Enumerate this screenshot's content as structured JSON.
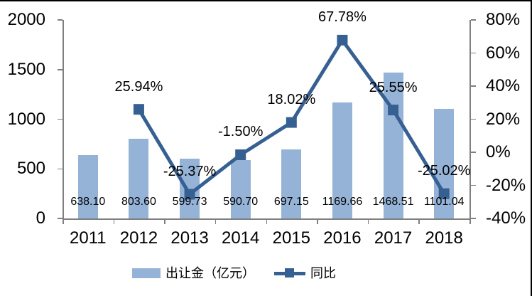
{
  "chart_data": {
    "type": "combo",
    "title": "",
    "categories": [
      "2011",
      "2012",
      "2013",
      "2014",
      "2015",
      "2016",
      "2017",
      "2018"
    ],
    "series": [
      {
        "name": "出让金（亿元）",
        "type": "bar",
        "axis": "left",
        "values": [
          638.1,
          803.6,
          599.73,
          590.7,
          697.15,
          1169.66,
          1468.51,
          1101.04
        ],
        "labels": [
          "638.10",
          "803.60",
          "599.73",
          "590.70",
          "697.15",
          "1169.66",
          "1468.51",
          "1101.04"
        ]
      },
      {
        "name": "同比",
        "type": "line",
        "axis": "right",
        "values": [
          null,
          25.94,
          -25.37,
          -1.5,
          18.02,
          67.78,
          25.55,
          -25.02
        ],
        "labels": [
          null,
          "25.94%",
          "-25.37%",
          "-1.50%",
          "18.02%",
          "67.78%",
          "25.55%",
          "-25.02%"
        ]
      }
    ],
    "left_axis": {
      "min": 0,
      "max": 2000,
      "tick_labels": [
        "2000",
        "1500",
        "1000",
        "500",
        "0"
      ]
    },
    "right_axis": {
      "min": -40,
      "max": 80,
      "tick_labels": [
        "80%",
        "60%",
        "40%",
        "20%",
        "0%",
        "-20%",
        "-40%"
      ]
    },
    "colors": {
      "bar": "#95B3D7",
      "line": "#376092"
    },
    "legend_position": "bottom",
    "grid": false
  }
}
